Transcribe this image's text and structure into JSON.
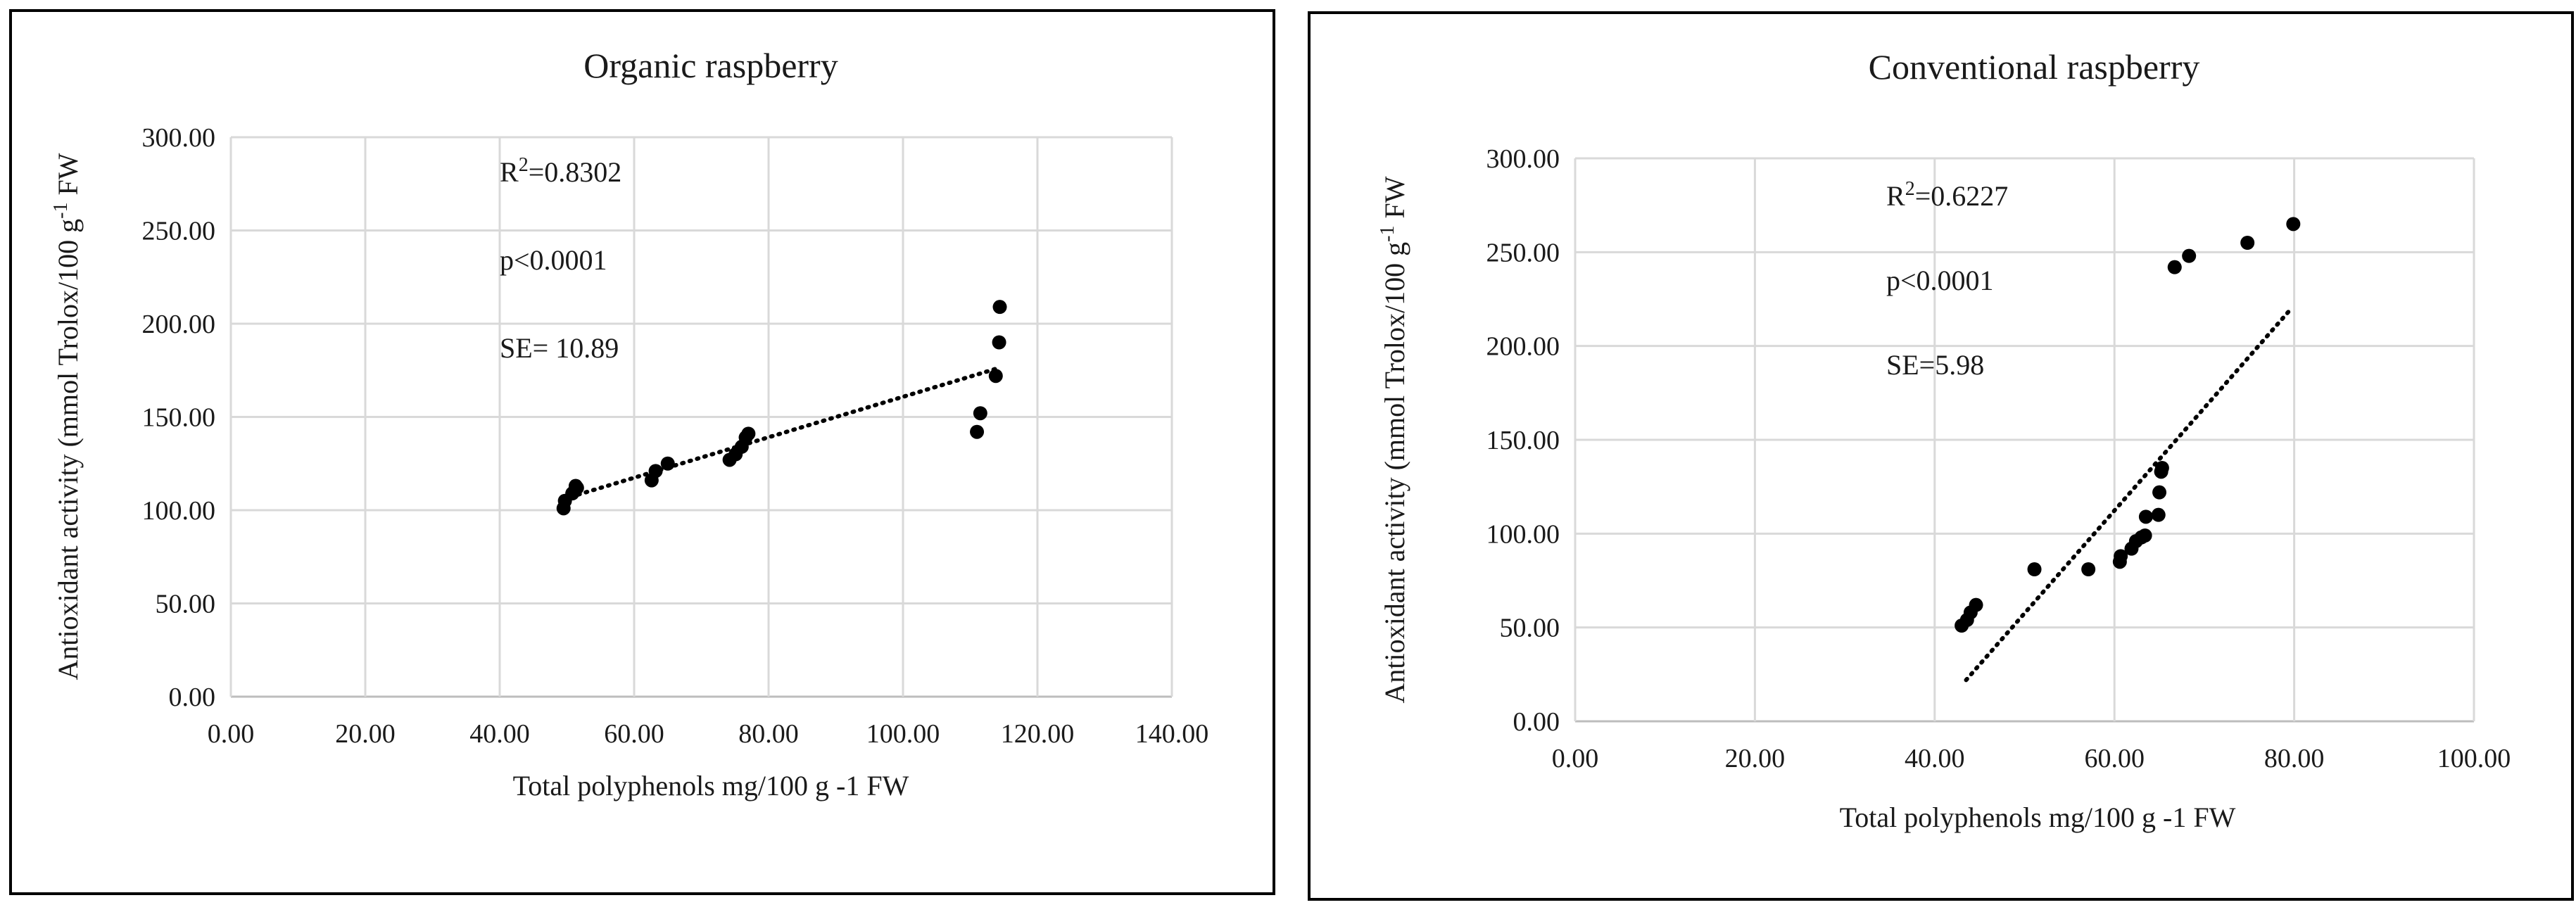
{
  "chart_data": [
    {
      "type": "scatter",
      "title": "Organic raspberry",
      "xlabel": "Total polyphenols mg/100 g -1 FW",
      "ylabel_parts": [
        "Antioxidant activity (mmol Trolox/100 g",
        "-1",
        " FW"
      ],
      "xlim": [
        0,
        140
      ],
      "ylim": [
        0,
        300
      ],
      "xticks": [
        "0.00",
        "20.00",
        "40.00",
        "60.00",
        "80.00",
        "100.00",
        "120.00",
        "140.00"
      ],
      "yticks": [
        "0.00",
        "50.00",
        "100.00",
        "150.00",
        "200.00",
        "250.00",
        "300.00"
      ],
      "grid": true,
      "trendline": {
        "style": "dotted",
        "x": [
          49.5,
          114
        ],
        "y": [
          106,
          176
        ]
      },
      "annotations": [
        {
          "parts": [
            "R",
            "2",
            "=0.8302"
          ]
        },
        {
          "parts": [
            "p<0.0001"
          ]
        },
        {
          "parts": [
            "SE= 10.89"
          ]
        }
      ],
      "series": [
        {
          "points": [
            [
              49.5,
              101
            ],
            [
              49.7,
              105
            ],
            [
              50.8,
              109
            ],
            [
              51.3,
              113
            ],
            [
              51.5,
              112
            ],
            [
              62.6,
              116
            ],
            [
              63.2,
              121
            ],
            [
              65.0,
              125
            ],
            [
              74.2,
              127
            ],
            [
              75.1,
              130
            ],
            [
              76.0,
              134
            ],
            [
              76.6,
              139
            ],
            [
              77.0,
              141
            ],
            [
              111.0,
              142
            ],
            [
              111.5,
              152
            ],
            [
              113.8,
              172
            ],
            [
              114.3,
              190
            ],
            [
              114.4,
              209
            ]
          ]
        }
      ]
    },
    {
      "type": "scatter",
      "title": "Conventional raspberry",
      "xlabel": "Total polyphenols mg/100 g -1 FW",
      "ylabel_parts": [
        "Antioxidant activity (mmol Trolox/100 g",
        "-1",
        " FW"
      ],
      "xlim": [
        0,
        100
      ],
      "ylim": [
        0,
        300
      ],
      "xticks": [
        "0.00",
        "20.00",
        "40.00",
        "60.00",
        "80.00",
        "100.00"
      ],
      "yticks": [
        "0.00",
        "50.00",
        "100.00",
        "150.00",
        "200.00",
        "250.00",
        "300.00"
      ],
      "grid": true,
      "trendline": {
        "style": "dotted",
        "x": [
          43.5,
          79.5
        ],
        "y": [
          22,
          219
        ]
      },
      "annotations": [
        {
          "parts": [
            "R",
            "2",
            "=0.6227"
          ]
        },
        {
          "parts": [
            "p<0.0001"
          ]
        },
        {
          "parts": [
            "SE=5.98"
          ]
        }
      ],
      "series": [
        {
          "points": [
            [
              43.0,
              51
            ],
            [
              43.6,
              54
            ],
            [
              44.0,
              58
            ],
            [
              44.6,
              62
            ],
            [
              51.1,
              81
            ],
            [
              57.1,
              81
            ],
            [
              60.6,
              85
            ],
            [
              60.7,
              88
            ],
            [
              61.9,
              92
            ],
            [
              62.4,
              96
            ],
            [
              63.0,
              98
            ],
            [
              63.4,
              99
            ],
            [
              63.5,
              109
            ],
            [
              64.9,
              110
            ],
            [
              65.0,
              122
            ],
            [
              65.2,
              133
            ],
            [
              65.3,
              135
            ],
            [
              66.7,
              242
            ],
            [
              68.3,
              248
            ],
            [
              74.8,
              255
            ],
            [
              79.9,
              265
            ]
          ]
        }
      ]
    }
  ]
}
